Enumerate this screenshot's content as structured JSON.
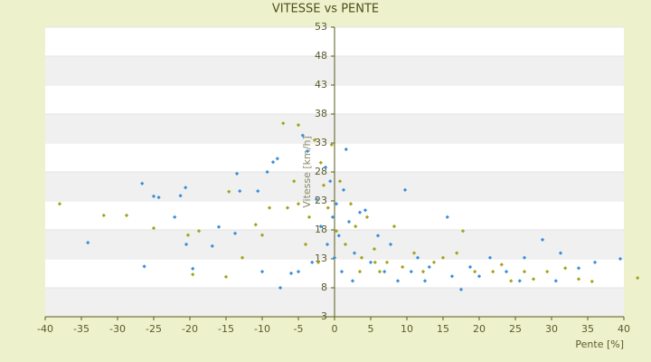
{
  "chart_data": {
    "type": "scatter",
    "title": "VITESSE vs PENTE",
    "x_label": "Pente [%]",
    "y_label": "Vitesse [km/h]",
    "xlim": [
      -40,
      40
    ],
    "ylim": [
      3,
      53
    ],
    "xticks": [
      -40,
      -35,
      -30,
      -25,
      -20,
      -15,
      -10,
      -5,
      0,
      5,
      10,
      15,
      20,
      25,
      30,
      35,
      40
    ],
    "yticks": [
      3,
      8,
      13,
      18,
      23,
      28,
      33,
      38,
      43,
      48,
      53
    ],
    "grid": true,
    "series": [
      {
        "color": "#3a8fd8",
        "x": [
          -26.6,
          -25,
          -24.3,
          -20.6,
          -21.3,
          -22.1,
          -20.5,
          -34.1,
          -26.3,
          -16.9,
          -16,
          -13.5,
          -13.1,
          -10.6,
          -9.3,
          -8.5,
          -7.9,
          -7.5,
          -6,
          -4.4,
          -3.75,
          -2.5,
          -1.9,
          -1.25,
          -1,
          -0.6,
          -0.25,
          0.25,
          0.6,
          1.25,
          1.6,
          2,
          2.75,
          3.5,
          4.25,
          5,
          6,
          6.9,
          7.75,
          9.75,
          10.6,
          11.5,
          13.1,
          15.6,
          16.25,
          17.5,
          18.75,
          20,
          21.5,
          23.75,
          26.25,
          28.75,
          31.25,
          33.75,
          36,
          39.5,
          30.6,
          25.6,
          12.5,
          8.75,
          2.5,
          1,
          0,
          -3.1,
          -5,
          -10,
          -19.6,
          -13.75
        ],
        "y": [
          26,
          23.8,
          23.6,
          25.3,
          23.9,
          20.2,
          15.5,
          15.8,
          11.7,
          15.2,
          18.5,
          27.7,
          24.7,
          24.7,
          28,
          29.7,
          30.3,
          8,
          10.5,
          34.3,
          31.6,
          23.3,
          18.6,
          28.8,
          15.5,
          26.4,
          20.2,
          22.5,
          17,
          24.9,
          31.9,
          19.4,
          14,
          21,
          21.4,
          12.4,
          17,
          10.8,
          15.5,
          24.9,
          10.8,
          13.2,
          11.6,
          20.2,
          10,
          7.7,
          11.6,
          10,
          13.2,
          10.8,
          13.2,
          16.3,
          14,
          11.4,
          12.4,
          13,
          9.2,
          9.2,
          9.2,
          9.2,
          9.2,
          10.8,
          13.2,
          12.4,
          10.8,
          10.8,
          11.3,
          17.4
        ]
      },
      {
        "color": "#a3a31c",
        "x": [
          -38,
          -31.9,
          -28.75,
          -25,
          -20.25,
          -18.75,
          -19.6,
          -15,
          -14.6,
          -12.75,
          -10.9,
          -10,
          -9,
          -7.1,
          -6.5,
          -5.6,
          -5,
          -4,
          -3.5,
          -2.75,
          -2.25,
          -1.5,
          -0.9,
          -0.4,
          0.25,
          0.75,
          1.5,
          2.25,
          2.9,
          3.75,
          4.5,
          5.5,
          6.25,
          7.25,
          8.25,
          9.4,
          11,
          12.25,
          13.75,
          15,
          16.9,
          17.75,
          19.4,
          21.9,
          23.1,
          24.4,
          26.25,
          27.5,
          29.4,
          31.9,
          33.75,
          35.6,
          41.9,
          -5,
          -1.9,
          3.5,
          5.6
        ],
        "y": [
          22.5,
          20.5,
          20.5,
          18.3,
          17.1,
          17.8,
          10.3,
          9.9,
          24.6,
          13.2,
          18.9,
          17.1,
          21.8,
          36.4,
          21.8,
          26.4,
          36.1,
          15.5,
          20.2,
          33.5,
          12.4,
          25.7,
          21.8,
          32.7,
          17.8,
          26.4,
          15.5,
          22.5,
          18.6,
          13.2,
          20.2,
          14.7,
          10.8,
          12.4,
          18.6,
          11.6,
          14,
          10.8,
          12.4,
          13.2,
          14,
          17.8,
          10.8,
          10.8,
          12,
          9.2,
          10.8,
          9.5,
          10.8,
          11.4,
          9.5,
          9.1,
          9.7,
          22.5,
          29.6,
          10.8,
          12.4
        ]
      }
    ]
  }
}
